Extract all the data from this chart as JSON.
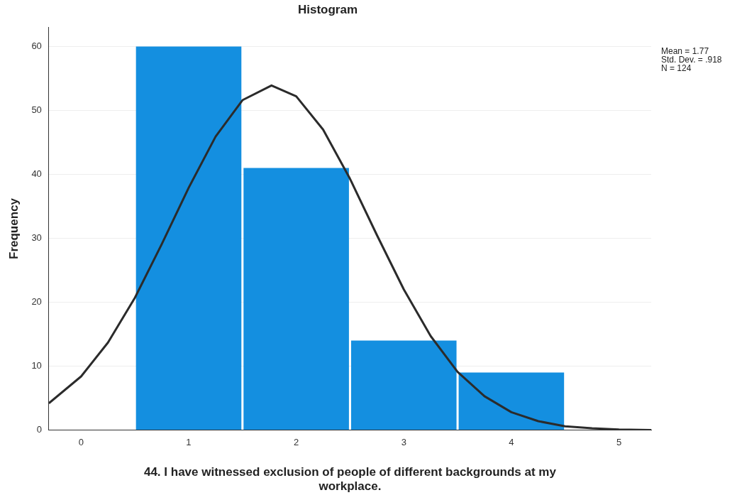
{
  "chart_data": {
    "type": "histogram",
    "title": "Histogram",
    "xlabel": "44. I have witnessed exclusion of people of different backgrounds at my workplace.",
    "ylabel": "Frequency",
    "bins": [
      0.5,
      1.5,
      2.5,
      3.5,
      4.5
    ],
    "values": [
      60,
      41,
      14,
      9
    ],
    "color": "#148fe0",
    "series": [
      {
        "type": "line",
        "color": "#2b2b2b",
        "x": [
          -0.3,
          0,
          0.25,
          0.5,
          0.75,
          1,
          1.25,
          1.5,
          1.77,
          2,
          2.25,
          2.5,
          2.75,
          3,
          3.25,
          3.5,
          3.75,
          4,
          4.25,
          4.5,
          4.75,
          5,
          5.3
        ],
        "values": [
          4.2,
          8.4,
          13.7,
          20.7,
          29.1,
          37.9,
          45.9,
          51.6,
          53.9,
          52.2,
          47.0,
          39.3,
          30.5,
          22.0,
          14.7,
          9.1,
          5.3,
          2.8,
          1.4,
          0.6,
          0.3,
          0.1,
          0.0
        ]
      }
    ],
    "xlim": [
      -0.3,
      5.3
    ],
    "ylim": [
      0,
      63
    ],
    "xticks": [
      0,
      1,
      2,
      3,
      4,
      5
    ],
    "yticks": [
      0,
      10,
      20,
      30,
      40,
      50,
      60
    ],
    "grid": "y",
    "annotations": [
      "Mean = 1.77",
      "Std. Dev. = .918",
      "N = 124"
    ]
  }
}
